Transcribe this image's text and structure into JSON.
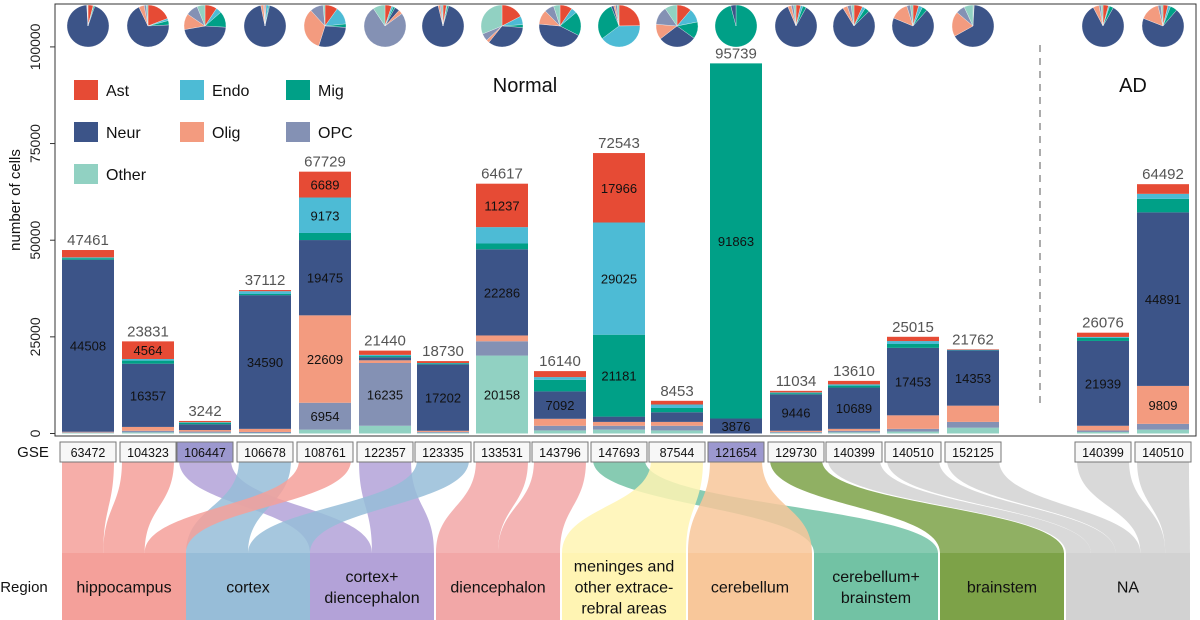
{
  "chart_data": {
    "type": "bar",
    "stacked": true,
    "ylabel": "number of cells",
    "ylim": [
      0,
      115000
    ],
    "yticks": [
      0,
      25000,
      50000,
      75000,
      100000
    ],
    "xaxis_title": "GSE",
    "region_axis_title": "Region",
    "group_labels": {
      "normal": "Normal",
      "ad": "AD"
    },
    "legend": [
      {
        "key": "Ast",
        "label": "Ast",
        "color": "#e64b35"
      },
      {
        "key": "Endo",
        "label": "Endo",
        "color": "#4dbbd5"
      },
      {
        "key": "Mig",
        "label": "Mig",
        "color": "#00a087"
      },
      {
        "key": "Neur",
        "label": "Neur",
        "color": "#3c5488"
      },
      {
        "key": "Olig",
        "label": "Olig",
        "color": "#f39b7f"
      },
      {
        "key": "OPC",
        "label": "OPC",
        "color": "#8491b4"
      },
      {
        "key": "Other",
        "label": "Other",
        "color": "#91d1c2"
      }
    ],
    "series_order": [
      "Other",
      "OPC",
      "Olig",
      "Neur",
      "Mig",
      "Endo",
      "Ast"
    ],
    "bars": [
      {
        "gse": "63472",
        "group": "Normal",
        "total": 47461,
        "label_highlight": false,
        "regions": [
          "hippocampus"
        ],
        "values": {
          "Other": 150,
          "OPC": 150,
          "Olig": 150,
          "Neur": 44508,
          "Mig": 400,
          "Endo": 200,
          "Ast": 1903
        },
        "labels": [
          {
            "key": "Neur",
            "text": "44508"
          }
        ]
      },
      {
        "gse": "104323",
        "group": "Normal",
        "total": 23831,
        "label_highlight": false,
        "regions": [
          "hippocampus"
        ],
        "values": {
          "Other": 300,
          "OPC": 400,
          "Olig": 1000,
          "Neur": 16357,
          "Mig": 800,
          "Endo": 410,
          "Ast": 4564
        },
        "labels": [
          {
            "key": "Neur",
            "text": "16357"
          },
          {
            "key": "Ast",
            "text": "4564"
          }
        ]
      },
      {
        "gse": "106447",
        "group": "Normal",
        "total": 3242,
        "label_highlight": true,
        "regions": [
          "cortex+diencephalon"
        ],
        "values": {
          "Other": 200,
          "OPC": 300,
          "Olig": 400,
          "Neur": 1500,
          "Mig": 400,
          "Endo": 142,
          "Ast": 300
        },
        "labels": []
      },
      {
        "gse": "106678",
        "group": "Normal",
        "total": 37112,
        "label_highlight": false,
        "regions": [
          "cortex"
        ],
        "values": {
          "Other": 100,
          "OPC": 300,
          "Olig": 800,
          "Neur": 34590,
          "Mig": 300,
          "Endo": 722,
          "Ast": 300
        },
        "labels": [
          {
            "key": "Neur",
            "text": "34590"
          }
        ]
      },
      {
        "gse": "108761",
        "group": "Normal",
        "total": 67729,
        "label_highlight": false,
        "regions": [
          "hippocampus"
        ],
        "values": {
          "Other": 1000,
          "OPC": 6954,
          "Olig": 22609,
          "Neur": 19475,
          "Mig": 1829,
          "Endo": 9173,
          "Ast": 6689
        },
        "labels": [
          {
            "key": "OPC",
            "text": "6954"
          },
          {
            "key": "Olig",
            "text": "22609"
          },
          {
            "key": "Neur",
            "text": "19475"
          },
          {
            "key": "Endo",
            "text": "9173"
          },
          {
            "key": "Ast",
            "text": "6689"
          }
        ]
      },
      {
        "gse": "122357",
        "group": "Normal",
        "total": 21440,
        "label_highlight": false,
        "regions": [
          "cortex+diencephalon"
        ],
        "values": {
          "Other": 2000,
          "OPC": 16235,
          "Olig": 700,
          "Neur": 800,
          "Mig": 300,
          "Endo": 305,
          "Ast": 1100
        },
        "labels": [
          {
            "key": "OPC",
            "text": "16235"
          }
        ]
      },
      {
        "gse": "123335",
        "group": "Normal",
        "total": 18730,
        "label_highlight": false,
        "regions": [
          "cortex"
        ],
        "values": {
          "Other": 200,
          "OPC": 200,
          "Olig": 300,
          "Neur": 17202,
          "Mig": 200,
          "Endo": 128,
          "Ast": 500
        },
        "labels": [
          {
            "key": "Neur",
            "text": "17202"
          }
        ]
      },
      {
        "gse": "133531",
        "group": "Normal",
        "total": 64617,
        "label_highlight": false,
        "regions": [
          "diencephalon"
        ],
        "values": {
          "Other": 20158,
          "OPC": 3700,
          "Olig": 1500,
          "Neur": 22286,
          "Mig": 1500,
          "Endo": 4236,
          "Ast": 11237
        },
        "labels": [
          {
            "key": "Other",
            "text": "20158"
          },
          {
            "key": "Neur",
            "text": "22286"
          },
          {
            "key": "Ast",
            "text": "11237"
          }
        ]
      },
      {
        "gse": "143796",
        "group": "Normal",
        "total": 16140,
        "label_highlight": false,
        "regions": [
          "diencephalon"
        ],
        "values": {
          "Other": 800,
          "OPC": 1200,
          "Olig": 1800,
          "Neur": 7092,
          "Mig": 3000,
          "Endo": 700,
          "Ast": 1548
        },
        "labels": [
          {
            "key": "Neur",
            "text": "7092"
          }
        ]
      },
      {
        "gse": "147693",
        "group": "Normal",
        "total": 72543,
        "label_highlight": false,
        "regions": [
          "cerebellum+brainstem"
        ],
        "values": {
          "Other": 1000,
          "OPC": 1000,
          "Olig": 1000,
          "Neur": 1371,
          "Mig": 21181,
          "Endo": 29025,
          "Ast": 17966
        },
        "labels": [
          {
            "key": "Mig",
            "text": "21181"
          },
          {
            "key": "Endo",
            "text": "29025"
          },
          {
            "key": "Ast",
            "text": "17966"
          }
        ]
      },
      {
        "gse": "87544",
        "group": "Normal",
        "total": 8453,
        "label_highlight": false,
        "regions": [
          "meninges and other extracerebral areas"
        ],
        "values": {
          "Other": 800,
          "OPC": 1200,
          "Olig": 1000,
          "Neur": 2500,
          "Mig": 1100,
          "Endo": 900,
          "Ast": 953
        },
        "labels": []
      },
      {
        "gse": "121654",
        "group": "Normal",
        "total": 95739,
        "label_highlight": true,
        "regions": [
          "cerebellum"
        ],
        "values": {
          "Other": 0,
          "OPC": 0,
          "Olig": 0,
          "Neur": 3876,
          "Mig": 91863,
          "Endo": 0,
          "Ast": 0
        },
        "labels": [
          {
            "key": "Neur",
            "text": "3876"
          },
          {
            "key": "Mig",
            "text": "91863"
          }
        ]
      },
      {
        "gse": "129730",
        "group": "Normal",
        "total": 11034,
        "label_highlight": false,
        "regions": [
          "brainstem"
        ],
        "values": {
          "Other": 200,
          "OPC": 200,
          "Olig": 300,
          "Neur": 9446,
          "Mig": 300,
          "Endo": 188,
          "Ast": 400
        },
        "labels": [
          {
            "key": "Neur",
            "text": "9446"
          }
        ]
      },
      {
        "gse": "140399",
        "group": "Normal",
        "total": 13610,
        "label_highlight": false,
        "regions": [
          "NA"
        ],
        "values": {
          "Other": 300,
          "OPC": 400,
          "Olig": 500,
          "Neur": 10689,
          "Mig": 500,
          "Endo": 321,
          "Ast": 900
        },
        "labels": [
          {
            "key": "Neur",
            "text": "10689"
          }
        ]
      },
      {
        "gse": "140510",
        "group": "Normal",
        "total": 25015,
        "label_highlight": false,
        "regions": [
          "NA"
        ],
        "values": {
          "Other": 500,
          "OPC": 700,
          "Olig": 3500,
          "Neur": 17453,
          "Mig": 1000,
          "Endo": 762,
          "Ast": 1100
        },
        "labels": [
          {
            "key": "Neur",
            "text": "17453"
          }
        ]
      },
      {
        "gse": "152125",
        "group": "Normal",
        "total": 21762,
        "label_highlight": false,
        "regions": [
          "NA"
        ],
        "values": {
          "Other": 1500,
          "OPC": 1500,
          "Olig": 4200,
          "Neur": 14353,
          "Mig": 100,
          "Endo": 9,
          "Ast": 100
        },
        "labels": [
          {
            "key": "Neur",
            "text": "14353"
          }
        ]
      },
      {
        "gse": "140399",
        "group": "AD",
        "total": 26076,
        "label_highlight": false,
        "regions": [
          "NA"
        ],
        "values": {
          "Other": 400,
          "OPC": 400,
          "Olig": 1200,
          "Neur": 21939,
          "Mig": 800,
          "Endo": 237,
          "Ast": 1100
        },
        "labels": [
          {
            "key": "Neur",
            "text": "21939"
          }
        ]
      },
      {
        "gse": "140510",
        "group": "AD",
        "total": 64492,
        "label_highlight": false,
        "regions": [
          "NA"
        ],
        "values": {
          "Other": 1000,
          "OPC": 1500,
          "Olig": 9809,
          "Neur": 44891,
          "Mig": 3500,
          "Endo": 1292,
          "Ast": 2500
        },
        "labels": [
          {
            "key": "Olig",
            "text": "9809"
          },
          {
            "key": "Neur",
            "text": "44891"
          }
        ]
      }
    ],
    "regions": [
      {
        "key": "hippocampus",
        "lines": [
          "hippocampus"
        ],
        "color": "#f4a09a"
      },
      {
        "key": "cortex",
        "lines": [
          "cortex"
        ],
        "color": "#97bdd8"
      },
      {
        "key": "cortex+diencephalon",
        "lines": [
          "cortex+",
          "diencephalon"
        ],
        "color": "#b3a2d8"
      },
      {
        "key": "diencephalon",
        "lines": [
          "diencephalon"
        ],
        "color": "#f2a7a7"
      },
      {
        "key": "meninges and other extracerebral areas",
        "lines": [
          "meninges and",
          "other extrace-",
          "rebral areas"
        ],
        "color": "#fff4b3"
      },
      {
        "key": "cerebellum",
        "lines": [
          "cerebellum"
        ],
        "color": "#f8c79a"
      },
      {
        "key": "cerebellum+brainstem",
        "lines": [
          "cerebellum+",
          "brainstem"
        ],
        "color": "#72c2a4"
      },
      {
        "key": "brainstem",
        "lines": [
          "brainstem"
        ],
        "color": "#7da248"
      },
      {
        "key": "NA",
        "lines": [
          "NA"
        ],
        "color": "#d2d2d2"
      }
    ]
  }
}
